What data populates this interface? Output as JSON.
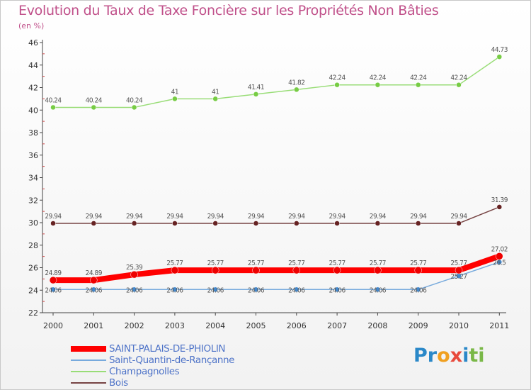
{
  "logo": {
    "letters": [
      {
        "char": "P",
        "color": "#2a88c8"
      },
      {
        "char": "r",
        "color": "#2a88c8"
      },
      {
        "char": "o",
        "color": "#f0a020"
      },
      {
        "char": "x",
        "color": "#e84a3c"
      },
      {
        "char": "i",
        "color": "#2a88c8"
      },
      {
        "char": "t",
        "color": "#7ab848"
      },
      {
        "char": "i",
        "color": "#7ab848"
      }
    ]
  },
  "chart_data": {
    "type": "line",
    "title": "Evolution du Taux de Taxe Foncière sur les Propriétés Non Bâties",
    "subtitle": "(en %)",
    "categories": [
      "2000",
      "2001",
      "2002",
      "2003",
      "2004",
      "2005",
      "2006",
      "2007",
      "2008",
      "2009",
      "2010",
      "2011"
    ],
    "ylim": [
      22,
      46
    ],
    "yticks": [
      22,
      24,
      26,
      28,
      30,
      32,
      34,
      36,
      38,
      40,
      42,
      44,
      46
    ],
    "grid": false,
    "legend_position": "bottom-left",
    "series": [
      {
        "name": "Champagnolles",
        "color": "#99dd77",
        "marker": "#77cc44",
        "width": 1.5,
        "values": [
          40.24,
          40.24,
          40.24,
          41,
          41,
          41.41,
          41.82,
          42.24,
          42.24,
          42.24,
          42.24,
          44.73
        ],
        "labels": [
          "40.24",
          "40.24",
          "40.24",
          "41",
          "41",
          "41.41",
          "41.82",
          "42.24",
          "42.24",
          "42.24",
          "42.24",
          "44.73"
        ],
        "label_pos": "above"
      },
      {
        "name": "Bois",
        "color": "#774444",
        "marker": "#662222",
        "width": 1.5,
        "values": [
          29.94,
          29.94,
          29.94,
          29.94,
          29.94,
          29.94,
          29.94,
          29.94,
          29.94,
          29.94,
          29.94,
          31.39
        ],
        "labels": [
          "29.94",
          "29.94",
          "29.94",
          "29.94",
          "29.94",
          "29.94",
          "29.94",
          "29.94",
          "29.94",
          "29.94",
          "29.94",
          "31.39"
        ],
        "label_pos": "above"
      },
      {
        "name": "Saint-Quantin-de-Rançanne",
        "color": "#77aadd",
        "marker": "#4488cc",
        "width": 1.5,
        "values": [
          24.06,
          24.06,
          24.06,
          24.06,
          24.06,
          24.06,
          24.06,
          24.06,
          24.06,
          24.06,
          25.27,
          26.5
        ],
        "labels": [
          "24.06",
          "24.06",
          "24.06",
          "24.06",
          "24.06",
          "24.06",
          "24.06",
          "24.06",
          "24.06",
          "24.06",
          "25.27",
          "26.5"
        ],
        "label_pos": "over"
      },
      {
        "name": "SAINT-PALAIS-DE-PHIOLIN",
        "color": "#ff0000",
        "marker": "#ee0000",
        "width": 8,
        "values": [
          24.89,
          24.89,
          25.39,
          25.77,
          25.77,
          25.77,
          25.77,
          25.77,
          25.77,
          25.77,
          25.77,
          27.02
        ],
        "labels": [
          "24.89",
          "24.89",
          "25.39",
          "25.77",
          "25.77",
          "25.77",
          "25.77",
          "25.77",
          "25.77",
          "25.77",
          "25.77",
          "27.02"
        ],
        "label_pos": "above"
      }
    ],
    "legend_order": [
      "SAINT-PALAIS-DE-PHIOLIN",
      "Saint-Quantin-de-Rançanne",
      "Champagnolles",
      "Bois"
    ]
  }
}
